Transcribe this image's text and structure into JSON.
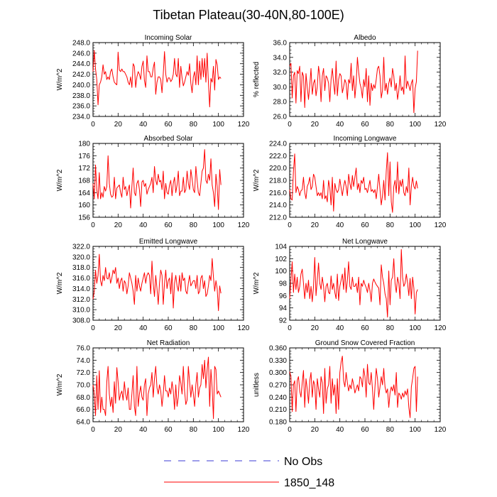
{
  "figure": {
    "title": "Tibetan Plateau(30-40N,80-100E)",
    "legend": [
      {
        "label": "No Obs",
        "color": "#3b3bd6",
        "style": "dashed"
      },
      {
        "label": "1850_148",
        "color": "#ff0000",
        "style": "solid"
      }
    ],
    "line_color": "#ff0000"
  },
  "chart_data": [
    {
      "type": "line",
      "title": "Incoming Solar",
      "ylabel": "W/m^2",
      "xlim": [
        0,
        120
      ],
      "ylim": [
        234,
        248
      ],
      "xticks": [
        0,
        20,
        40,
        60,
        80,
        100,
        120
      ],
      "yticks": [
        234,
        236,
        238,
        240,
        242,
        244,
        246,
        248
      ],
      "yfmt": 1,
      "x_start": 0,
      "values": [
        242.5,
        246.5,
        243,
        241,
        236.2,
        240,
        240.5,
        241.5,
        243.8,
        242,
        242.5,
        241,
        241.5,
        241,
        242.5,
        243,
        241.5,
        240.5,
        240.2,
        240,
        246.2,
        242.8,
        242.5,
        243,
        242.5,
        242.5,
        242,
        241.5,
        240.5,
        240,
        241.5,
        239.5,
        244,
        243.5,
        239.5,
        241.5,
        242.5,
        242,
        241,
        243.5,
        244.5,
        240.8,
        239.5,
        245.5,
        242.5,
        242.5,
        241.5,
        241.5,
        243.2,
        244.3,
        238.2,
        240.5,
        241.5,
        241.5,
        241,
        238.5,
        242,
        246.3,
        242,
        240.5,
        241.3,
        241.3,
        240.6,
        241,
        242,
        245,
        242,
        241.5,
        245,
        239.5,
        243.5,
        241.3,
        239.8,
        240.5,
        241.5,
        242.5,
        241.8,
        244,
        240.3,
        238.5,
        241.5,
        242.5,
        240,
        245.5,
        240,
        244.5,
        241,
        245,
        241.5,
        245,
        240.5,
        246,
        240.5,
        235.8,
        241.2,
        240.5,
        243.5,
        239,
        244.8,
        243.8,
        241,
        241.5,
        241.2
      ]
    },
    {
      "type": "line",
      "title": "Albedo",
      "ylabel": "% reflected",
      "xlim": [
        0,
        120
      ],
      "ylim": [
        26,
        36
      ],
      "xticks": [
        0,
        20,
        40,
        60,
        80,
        100,
        120
      ],
      "yticks": [
        26,
        28,
        30,
        32,
        34,
        36
      ],
      "yfmt": 1,
      "x_start": 0,
      "values": [
        32.8,
        33.2,
        28.5,
        31.5,
        32,
        27.8,
        32.2,
        31.8,
        32.8,
        28,
        32,
        31.5,
        27.2,
        31.8,
        30,
        28.3,
        30.2,
        32.5,
        29,
        30.5,
        31,
        28.8,
        30,
        32.8,
        31.5,
        28,
        31.5,
        32.5,
        29.5,
        31.5,
        31.2,
        30.5,
        28,
        31,
        32.5,
        30.5,
        29,
        33.5,
        28.8,
        31,
        31.8,
        31.5,
        29.2,
        30,
        31,
        30.5,
        28.3,
        31,
        30.5,
        33.2,
        29.5,
        31.5,
        28.5,
        30.5,
        34,
        32,
        30.5,
        29.8,
        28.5,
        31,
        30,
        32.5,
        28,
        31.5,
        27.5,
        30.5,
        29.5,
        30.3,
        29.8,
        31,
        32.5,
        32.8,
        31.5,
        28.5,
        29.5,
        34,
        29.5,
        30.5,
        29,
        30.5,
        31.2,
        30,
        32.5,
        31.5,
        29.5,
        30.5,
        28.3,
        29.5,
        31.5,
        29.5,
        30,
        29,
        34.2,
        29.8,
        30.8,
        30.2,
        29.5,
        30.5,
        31,
        26.5,
        29.8,
        30.7,
        34.9
      ]
    },
    {
      "type": "line",
      "title": "Absorbed Solar",
      "ylabel": "W/m^2",
      "xlim": [
        0,
        120
      ],
      "ylim": [
        156,
        180
      ],
      "xticks": [
        0,
        20,
        40,
        60,
        80,
        100,
        120
      ],
      "yticks": [
        156,
        160,
        164,
        168,
        172,
        176,
        180
      ],
      "yfmt": 0,
      "x_start": 0,
      "values": [
        167,
        162,
        173,
        165,
        162,
        170.5,
        162,
        164,
        162.5,
        166,
        164.5,
        166,
        176,
        167,
        163.5,
        162.5,
        163,
        169,
        162,
        165.5,
        166,
        166.5,
        164,
        162.5,
        169,
        165,
        166,
        163,
        165,
        166.5,
        159,
        166,
        172,
        164,
        163,
        167,
        168,
        165,
        159.5,
        167.5,
        168,
        166,
        167,
        163.5,
        165,
        166,
        167,
        169,
        164,
        172.5,
        168,
        166.5,
        170,
        167.5,
        168,
        165,
        171,
        162,
        167,
        164,
        163.5,
        166.5,
        168,
        163,
        167,
        169,
        164,
        166.5,
        171,
        163,
        164.5,
        164.5,
        169,
        164,
        165,
        171,
        167,
        165,
        171.5,
        168.5,
        165,
        164,
        172.5,
        168,
        164,
        163,
        167,
        171,
        172,
        178,
        168,
        167,
        170,
        168,
        175,
        166.5,
        164,
        159.5,
        170,
        166,
        158.5,
        171.5,
        166.5
      ]
    },
    {
      "type": "line",
      "title": "Incoming Longwave",
      "ylabel": "W/m^2",
      "xlim": [
        0,
        120
      ],
      "ylim": [
        212,
        224
      ],
      "xticks": [
        0,
        20,
        40,
        60,
        80,
        100,
        120
      ],
      "yticks": [
        212,
        214,
        216,
        218,
        220,
        222,
        224
      ],
      "yfmt": 1,
      "x_start": 0,
      "values": [
        216.5,
        215,
        214.8,
        219.5,
        222.3,
        216,
        217,
        216.5,
        215.5,
        216.3,
        216.5,
        218.5,
        216,
        215,
        217,
        217.5,
        218.5,
        216.5,
        217,
        219,
        218.5,
        217,
        215.5,
        216,
        215.5,
        216,
        215,
        218,
        215,
        215.5,
        214.5,
        218,
        216.8,
        214,
        218.5,
        213,
        217.5,
        216.5,
        216,
        216.5,
        218.2,
        216.8,
        215.5,
        217,
        218,
        217,
        215.5,
        219,
        217.5,
        216.5,
        218.8,
        217,
        218.5,
        220,
        216.5,
        217.5,
        216,
        218,
        217.5,
        218.5,
        216.5,
        216.7,
        216,
        217,
        218,
        216.2,
        216.5,
        216,
        216.5,
        215,
        217,
        219,
        216.5,
        214,
        215.5,
        218,
        214.8,
        219.5,
        222.5,
        215.5,
        221,
        214.5,
        212.8,
        217,
        218,
        216,
        221,
        215.8,
        218,
        217,
        218.2,
        216,
        215.5,
        217,
        216,
        220,
        214,
        217,
        218.5,
        217,
        216.6,
        217.9,
        216.7
      ]
    },
    {
      "type": "line",
      "title": "Emitted Longwave",
      "ylabel": "W/m^2",
      "xlim": [
        0,
        120
      ],
      "ylim": [
        308,
        322
      ],
      "xticks": [
        0,
        20,
        40,
        60,
        80,
        100,
        120
      ],
      "yticks": [
        308,
        310,
        312,
        314,
        316,
        318,
        320,
        322
      ],
      "yfmt": 1,
      "x_start": 0,
      "values": [
        312,
        313.5,
        317.5,
        315,
        316.5,
        320.5,
        315.5,
        314.5,
        316.5,
        315.5,
        318,
        316,
        315.8,
        317,
        315,
        316,
        317.5,
        316.8,
        318,
        315,
        316,
        314,
        315.5,
        316,
        313.5,
        315.5,
        315,
        313,
        314.5,
        317,
        316,
        315,
        313.5,
        311,
        316.5,
        313.5,
        316,
        314.5,
        313.5,
        315,
        316,
        317,
        315,
        316.5,
        317,
        316.5,
        313,
        319.2,
        315,
        312.5,
        316.5,
        314,
        311,
        315,
        317.5,
        316.5,
        311,
        315,
        317.5,
        314,
        315.5,
        316,
        313,
        317,
        310.3,
        315,
        316.5,
        314.5,
        313.5,
        316.5,
        313.5,
        317,
        315.5,
        316,
        313.5,
        313,
        315,
        316.5,
        314.5,
        315,
        315.5,
        315.5,
        314,
        316.5,
        313,
        313.5,
        316,
        316.5,
        314,
        315.5,
        312.5,
        313,
        314.5,
        316.5,
        315.5,
        319.7,
        316.2,
        313.5,
        315.5,
        314,
        309.8,
        314.5,
        313.1
      ]
    },
    {
      "type": "line",
      "title": "Net Longwave",
      "ylabel": "W/m^2",
      "xlim": [
        0,
        120
      ],
      "ylim": [
        92,
        104
      ],
      "xticks": [
        0,
        20,
        40,
        60,
        80,
        100,
        120
      ],
      "yticks": [
        92,
        94,
        96,
        98,
        100,
        102,
        104
      ],
      "yfmt": 0,
      "x_start": 0,
      "values": [
        95.5,
        98.5,
        101.5,
        96.5,
        99.5,
        97,
        99,
        96.5,
        97.5,
        99.5,
        100.3,
        98,
        95.5,
        98,
        96.5,
        98.5,
        95.5,
        97.5,
        95,
        97.5,
        102.2,
        96,
        98.5,
        101.3,
        98,
        97,
        99,
        97.5,
        95,
        97.5,
        98,
        96.5,
        96.3,
        99.2,
        97,
        98,
        96.5,
        95.5,
        99.5,
        95.2,
        97.5,
        98.5,
        99.5,
        97,
        100.5,
        96.5,
        98.5,
        101.5,
        97.5,
        97,
        99,
        97.5,
        97.5,
        98,
        96.5,
        99,
        94.5,
        98,
        97.5,
        98.5,
        97.8,
        97.3,
        96.5,
        98,
        96.8,
        95,
        98,
        98.7,
        98.2,
        97.8,
        97.5,
        97.2,
        94.5,
        101,
        99,
        98,
        96.3,
        95.5,
        92.5,
        100,
        94.5,
        98.5,
        99,
        102,
        98,
        96.5,
        99,
        98,
        95.5,
        103.5,
        99,
        97.5,
        98,
        99.5,
        98,
        96,
        98.8,
        95.5,
        99,
        97.2,
        93,
        96.5,
        97
      ]
    },
    {
      "type": "line",
      "title": "Net Radiation",
      "ylabel": "W/m^2",
      "xlim": [
        0,
        120
      ],
      "ylim": [
        64,
        76
      ],
      "xticks": [
        0,
        20,
        40,
        60,
        80,
        100,
        120
      ],
      "yticks": [
        64,
        66,
        68,
        70,
        72,
        74,
        76
      ],
      "yfmt": 1,
      "x_start": 0,
      "values": [
        70,
        68.5,
        65,
        71.5,
        66,
        72.3,
        65.5,
        68,
        66,
        66,
        65,
        70.5,
        73,
        68.5,
        66.5,
        68,
        65.5,
        70.5,
        67,
        72.8,
        70.5,
        67.5,
        68.5,
        69,
        67.5,
        70.5,
        68.5,
        67.5,
        69.5,
        66,
        66,
        68.5,
        71.5,
        66.5,
        65,
        73,
        66.5,
        68.5,
        69.8,
        68,
        67.5,
        70,
        71,
        65,
        68.5,
        69.5,
        70,
        72,
        68,
        71,
        73,
        69.5,
        68.5,
        70,
        69,
        66.5,
        68.5,
        71.5,
        69,
        69,
        68,
        69.5,
        68.5,
        70.5,
        69,
        66,
        70,
        66.5,
        68,
        71.5,
        70.3,
        68.5,
        73,
        69,
        66.8,
        67.5,
        73,
        70.5,
        68,
        70,
        68.5,
        66.5,
        70,
        72,
        68,
        69.5,
        70,
        73.3,
        71,
        74,
        69.5,
        72.5,
        74.5,
        66.5,
        72.5,
        69.5,
        64.5,
        73,
        72.5,
        68.5,
        69,
        68.5,
        68
      ]
    },
    {
      "type": "line",
      "title": "Ground Snow Covered Fraction",
      "ylabel": "unitless",
      "xlim": [
        0,
        120
      ],
      "ylim": [
        0.18,
        0.36
      ],
      "xticks": [
        0,
        20,
        40,
        60,
        80,
        100,
        120
      ],
      "yticks": [
        0.18,
        0.21,
        0.24,
        0.27,
        0.3,
        0.33,
        0.36
      ],
      "yfmt": 3,
      "x_start": 0,
      "values": [
        0.302,
        0.29,
        0.205,
        0.27,
        0.28,
        0.205,
        0.28,
        0.29,
        0.255,
        0.24,
        0.275,
        0.305,
        0.215,
        0.285,
        0.26,
        0.225,
        0.28,
        0.3,
        0.24,
        0.28,
        0.27,
        0.21,
        0.285,
        0.26,
        0.24,
        0.29,
        0.275,
        0.2,
        0.31,
        0.225,
        0.26,
        0.27,
        0.315,
        0.225,
        0.285,
        0.245,
        0.27,
        0.2,
        0.285,
        0.21,
        0.3,
        0.325,
        0.34,
        0.28,
        0.265,
        0.3,
        0.275,
        0.255,
        0.27,
        0.26,
        0.285,
        0.27,
        0.25,
        0.26,
        0.27,
        0.255,
        0.29,
        0.285,
        0.265,
        0.31,
        0.29,
        0.24,
        0.32,
        0.275,
        0.27,
        0.3,
        0.26,
        0.21,
        0.265,
        0.31,
        0.285,
        0.24,
        0.265,
        0.29,
        0.27,
        0.31,
        0.265,
        0.25,
        0.26,
        0.215,
        0.25,
        0.265,
        0.255,
        0.27,
        0.245,
        0.3,
        0.215,
        0.25,
        0.245,
        0.235,
        0.25,
        0.24,
        0.255,
        0.245,
        0.26,
        0.215,
        0.19,
        0.265,
        0.285,
        0.31,
        0.315,
        0.205,
        0.29
      ]
    }
  ]
}
